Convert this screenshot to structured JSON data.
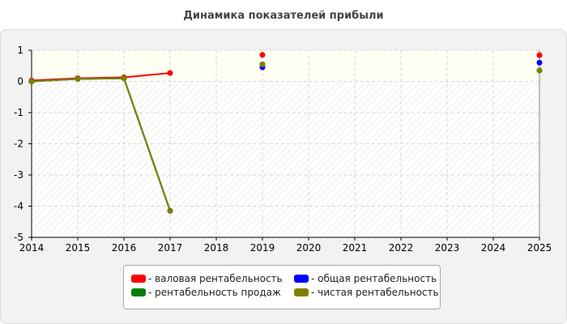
{
  "chart_data": {
    "type": "line",
    "title": "Динамика показателей прибыли",
    "x": [
      2014,
      2015,
      2016,
      2017,
      2018,
      2019,
      2020,
      2021,
      2022,
      2023,
      2024,
      2025
    ],
    "xlim": [
      2014,
      2025
    ],
    "ylim": [
      -5,
      1
    ],
    "yticks": [
      1,
      0,
      -1,
      -2,
      -3,
      -4,
      -5
    ],
    "grid": true,
    "legend_placement": "bottom",
    "series": [
      {
        "name": "валовая рентабельность",
        "color": "#ff0000",
        "values": [
          0.03,
          0.1,
          0.13,
          0.27,
          null,
          0.85,
          null,
          null,
          null,
          null,
          null,
          0.84
        ]
      },
      {
        "name": "общая рентабельность",
        "color": "#0000ff",
        "values": [
          0.0,
          0.08,
          0.1,
          -4.15,
          null,
          0.45,
          null,
          null,
          null,
          null,
          null,
          0.6
        ]
      },
      {
        "name": "рентабельность продаж",
        "color": "#008000",
        "values": [
          0.0,
          0.08,
          0.1,
          -4.15,
          null,
          0.55,
          null,
          null,
          null,
          null,
          null,
          0.35
        ]
      },
      {
        "name": "чистая рентабельность",
        "color": "#808000",
        "values": [
          0.0,
          0.08,
          0.1,
          -4.15,
          null,
          0.55,
          null,
          null,
          null,
          null,
          null,
          0.35
        ]
      }
    ]
  },
  "legend": {
    "items": [
      {
        "label": "- валовая рентабельность",
        "color": "#ff0000"
      },
      {
        "label": "- общая рентабельность",
        "color": "#0000ff"
      },
      {
        "label": "- рентабельность продаж",
        "color": "#008000"
      },
      {
        "label": "- чистая рентабельность",
        "color": "#808000"
      }
    ]
  }
}
